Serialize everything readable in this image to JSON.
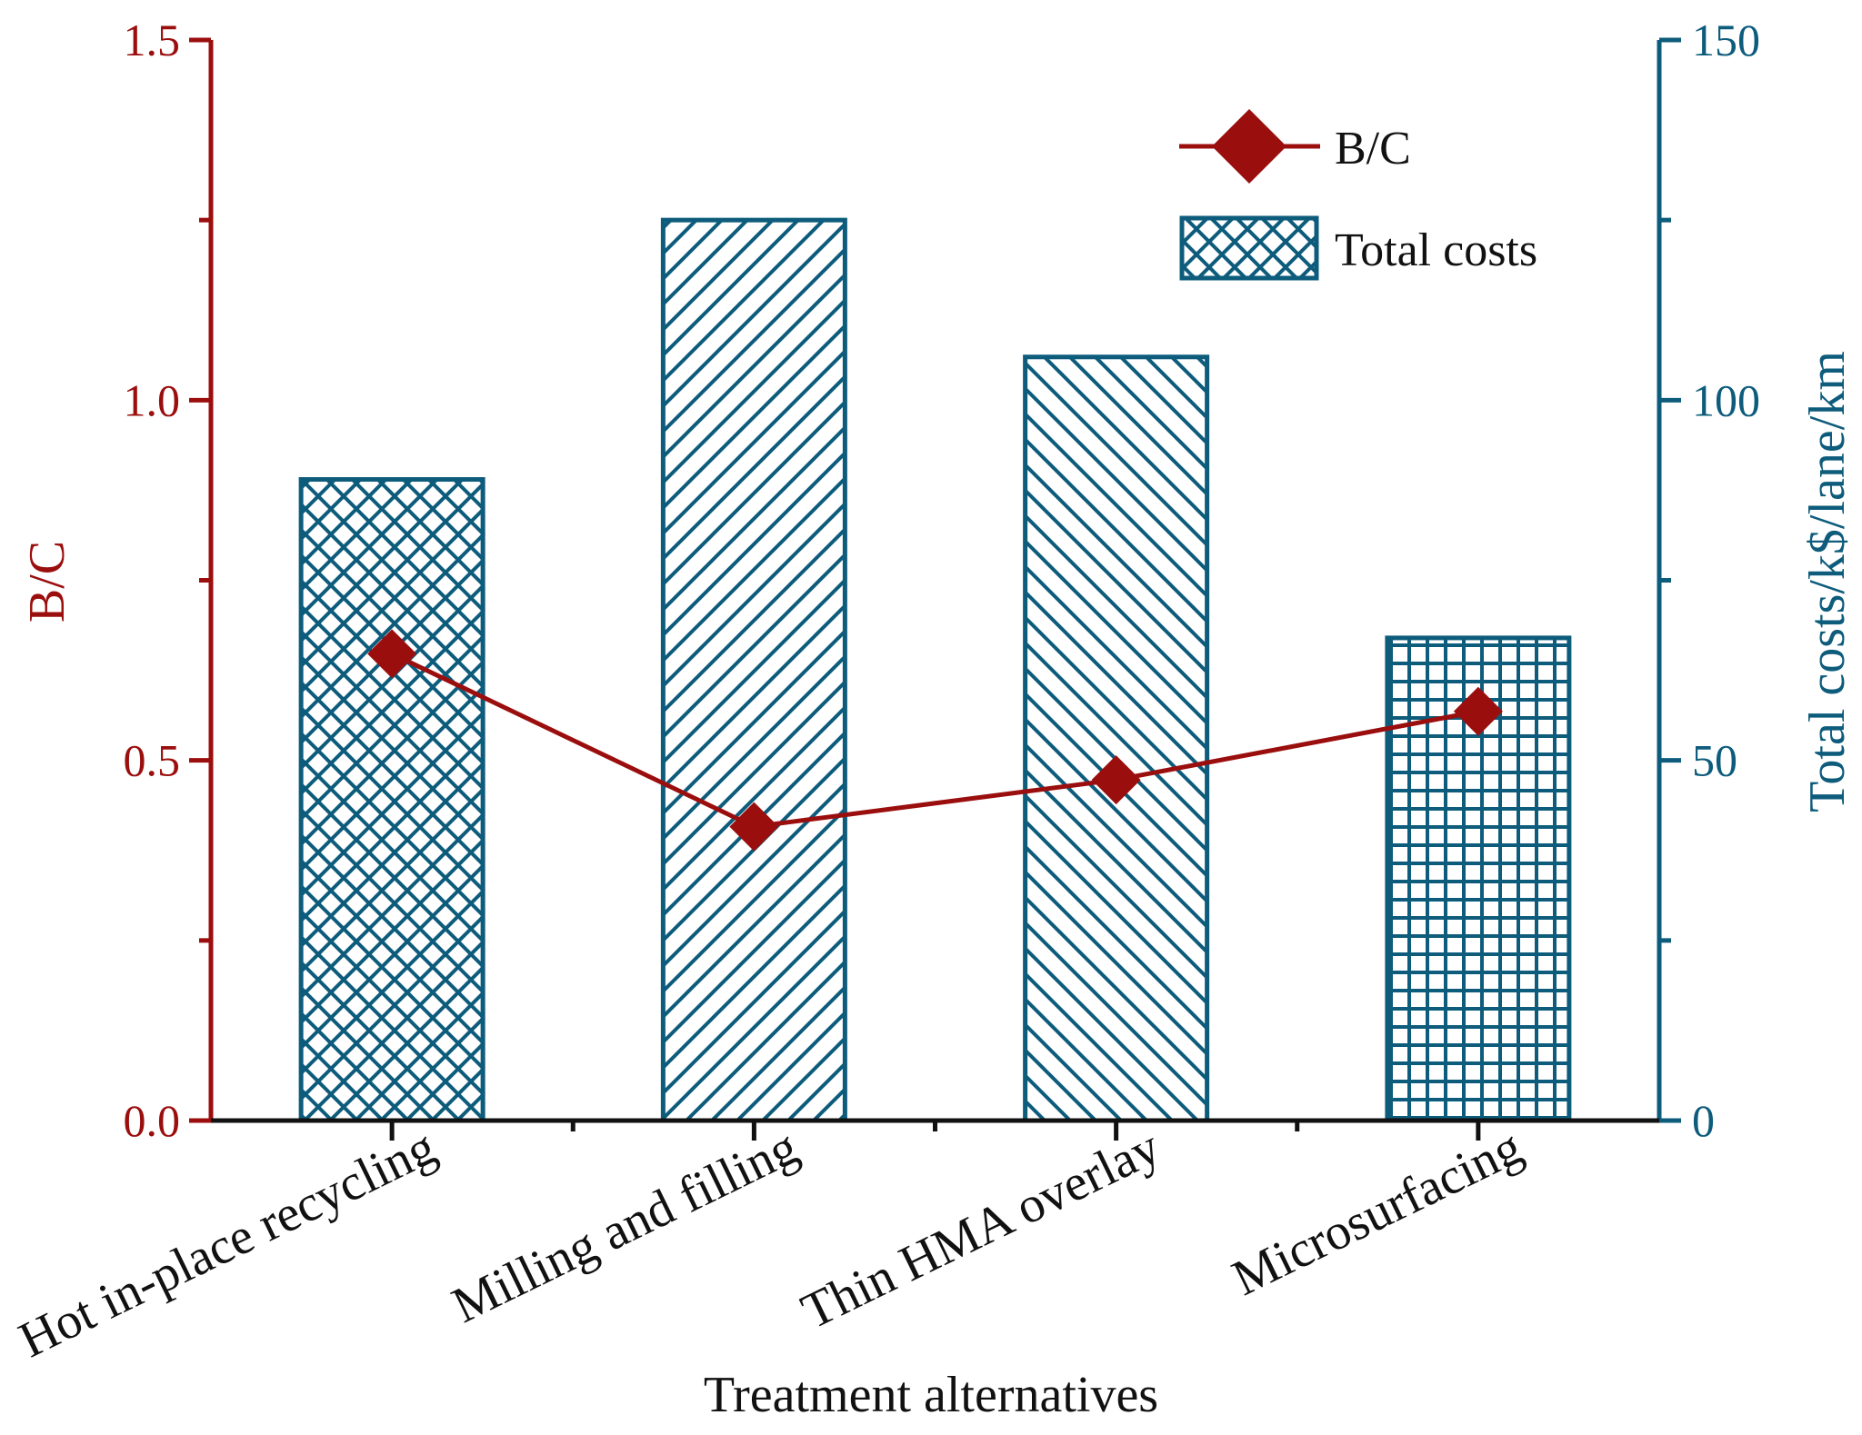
{
  "colors": {
    "bc": "#9B0E0E",
    "cost": "#0E5C7C",
    "text": "#111111"
  },
  "chart_data": {
    "type": "bar",
    "categories": [
      "Hot in-place recycling",
      "Milling and filling",
      "Thin HMA overlay",
      "Microsurfacing"
    ],
    "xlabel": "Treatment alternatives",
    "ylabel_left": "B/C",
    "ylabel_right": "Total costs/k$/lane/km",
    "ylim_left": [
      0,
      1.5
    ],
    "ylim_right": [
      0,
      150
    ],
    "yticks_left": [
      "0.0",
      "0.5",
      "1.0",
      "1.5"
    ],
    "yticks_right": [
      "0",
      "50",
      "100",
      "150"
    ],
    "series": [
      {
        "name": "Total costs",
        "type": "bar",
        "axis": "right",
        "values": [
          89,
          125,
          106,
          67
        ],
        "patterns": [
          "crosshatch",
          "diagonal-up",
          "diagonal-down",
          "grid"
        ]
      },
      {
        "name": "B/C",
        "type": "line",
        "axis": "left",
        "marker": "diamond",
        "values": [
          0.648,
          0.408,
          0.473,
          0.568
        ]
      }
    ],
    "legend": {
      "position": "top-right",
      "entries": [
        "B/C",
        "Total costs"
      ]
    },
    "grid": false
  }
}
